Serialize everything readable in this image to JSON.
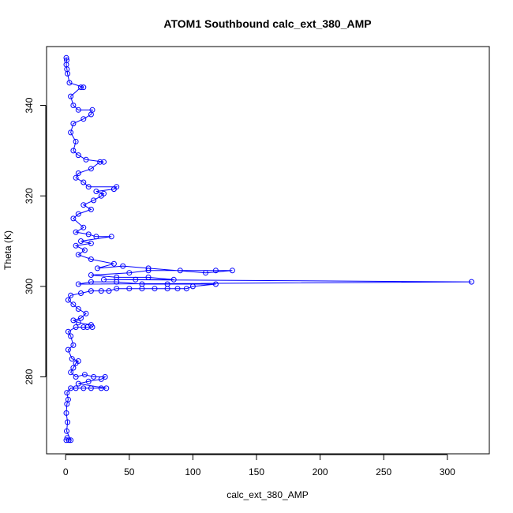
{
  "chart_data": {
    "type": "scatter",
    "title": "ATOM1 Southbound calc_ext_380_AMP",
    "xlabel": "calc_ext_380_AMP",
    "ylabel": "Theta (K)",
    "xlim": [
      -15,
      333
    ],
    "ylim": [
      263,
      353
    ],
    "xticks": [
      0,
      50,
      100,
      150,
      200,
      250,
      300
    ],
    "yticks": [
      280,
      300,
      320,
      340
    ],
    "marker": "open-circle",
    "connected": true,
    "color": "#0000ff",
    "grid": false,
    "series": [
      {
        "values": [
          [
            0.5,
            266
          ],
          [
            1.2,
            266.5
          ],
          [
            2.5,
            266
          ],
          [
            4,
            266
          ],
          [
            0.8,
            268
          ],
          [
            1.5,
            270
          ],
          [
            0.5,
            272
          ],
          [
            1,
            274
          ],
          [
            2,
            275
          ],
          [
            1,
            276.5
          ],
          [
            4,
            277.5
          ],
          [
            8,
            277.5
          ],
          [
            14,
            277.5
          ],
          [
            20,
            277.5
          ],
          [
            28,
            277.5
          ],
          [
            32,
            277.5
          ],
          [
            10,
            278.5
          ],
          [
            18,
            279
          ],
          [
            28,
            279.5
          ],
          [
            31,
            280
          ],
          [
            22,
            280
          ],
          [
            15,
            280.5
          ],
          [
            8,
            280
          ],
          [
            4,
            281
          ],
          [
            6,
            282
          ],
          [
            8,
            283
          ],
          [
            10,
            283.5
          ],
          [
            5,
            284
          ],
          [
            2,
            286
          ],
          [
            6,
            287
          ],
          [
            4,
            289
          ],
          [
            2,
            290
          ],
          [
            8,
            291
          ],
          [
            14,
            291
          ],
          [
            17,
            291
          ],
          [
            21,
            291
          ],
          [
            20,
            291.5
          ],
          [
            10,
            292
          ],
          [
            6,
            292.5
          ],
          [
            12,
            293
          ],
          [
            16,
            294
          ],
          [
            10,
            295
          ],
          [
            6,
            296
          ],
          [
            2,
            297
          ],
          [
            4,
            298
          ],
          [
            12,
            298.5
          ],
          [
            20,
            299
          ],
          [
            28,
            299
          ],
          [
            34,
            299
          ],
          [
            40,
            299.5
          ],
          [
            50,
            299.5
          ],
          [
            60,
            299.5
          ],
          [
            70,
            299.5
          ],
          [
            80,
            299.5
          ],
          [
            88,
            299.5
          ],
          [
            95,
            299.5
          ],
          [
            100,
            300
          ],
          [
            118,
            300.5
          ],
          [
            80,
            300.5
          ],
          [
            60,
            300.5
          ],
          [
            40,
            301
          ],
          [
            20,
            301
          ],
          [
            10,
            300.5
          ],
          [
            319,
            301
          ],
          [
            30,
            301.5
          ],
          [
            55,
            301.5
          ],
          [
            85,
            301.5
          ],
          [
            65,
            302
          ],
          [
            40,
            302
          ],
          [
            20,
            302.5
          ],
          [
            50,
            303
          ],
          [
            65,
            303.5
          ],
          [
            90,
            303.5
          ],
          [
            118,
            303.5
          ],
          [
            131,
            303.5
          ],
          [
            110,
            303
          ],
          [
            65,
            304
          ],
          [
            45,
            304.5
          ],
          [
            25,
            304
          ],
          [
            38,
            305
          ],
          [
            20,
            306
          ],
          [
            10,
            307
          ],
          [
            15,
            308
          ],
          [
            8,
            309
          ],
          [
            20,
            309.5
          ],
          [
            12,
            310
          ],
          [
            36,
            311
          ],
          [
            24,
            311
          ],
          [
            18,
            311.5
          ],
          [
            8,
            312
          ],
          [
            14,
            313
          ],
          [
            6,
            315
          ],
          [
            10,
            316
          ],
          [
            20,
            317
          ],
          [
            14,
            318
          ],
          [
            22,
            319
          ],
          [
            28,
            320
          ],
          [
            30,
            320.5
          ],
          [
            24,
            321
          ],
          [
            38,
            321.5
          ],
          [
            40,
            322
          ],
          [
            18,
            322
          ],
          [
            14,
            323
          ],
          [
            8,
            324
          ],
          [
            10,
            325
          ],
          [
            20,
            326
          ],
          [
            27,
            327.5
          ],
          [
            30,
            327.5
          ],
          [
            16,
            328
          ],
          [
            10,
            329
          ],
          [
            6,
            330
          ],
          [
            8,
            332
          ],
          [
            4,
            334
          ],
          [
            6,
            336
          ],
          [
            14,
            337
          ],
          [
            20,
            338
          ],
          [
            21,
            339
          ],
          [
            10,
            339
          ],
          [
            6,
            340
          ],
          [
            4,
            342
          ],
          [
            12,
            344
          ],
          [
            14,
            344
          ],
          [
            3,
            345
          ],
          [
            1.5,
            347
          ],
          [
            1,
            348
          ],
          [
            0.5,
            349
          ],
          [
            0.8,
            350
          ],
          [
            0.5,
            350.5
          ]
        ]
      }
    ]
  }
}
